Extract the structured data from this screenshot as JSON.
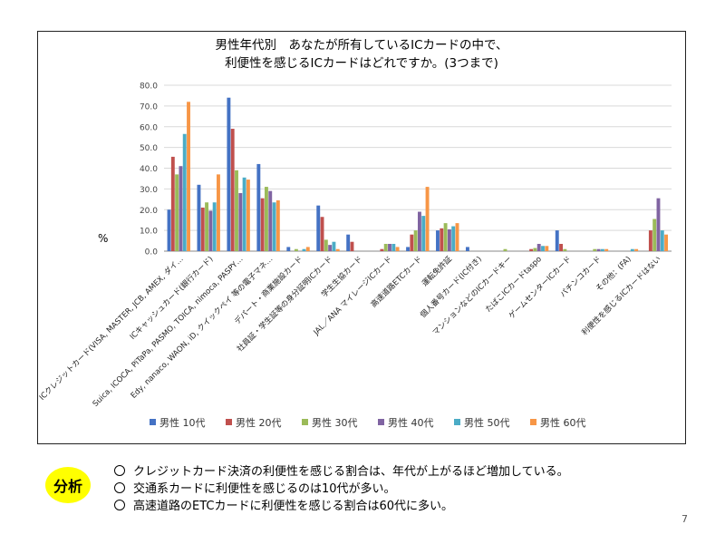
{
  "chart_data": {
    "type": "bar",
    "title": "男性年代別　あなたが所有しているICカードの中で、",
    "subtitle": "利便性を感じるICカードはどれですか。(3つまで)",
    "ylabel": "%",
    "ylim": [
      0,
      80
    ],
    "yticks": [
      "0.0",
      "10.0",
      "20.0",
      "30.0",
      "40.0",
      "50.0",
      "60.0",
      "70.0",
      "80.0"
    ],
    "grid": true,
    "legend_position": "bottom",
    "categories": [
      "ICクレジットカード(VISA, MASTER, JCB, AMEX, ダイ…",
      "ICキャッシュカード(銀行カード)",
      "Suica, ICOCA, PiTaPa, PASMO, TOICA, nimoca, PASPY…",
      "Edy, nanaco, WAON, iD, クイックペイ 等の電子マネ…",
      "デパート・商業施設カード",
      "社員証・学生証等の身分証明ICカード",
      "学生生協カード",
      "JAL／ANA マイレージICカード",
      "高速道路ETCカード",
      "運転免許証",
      "個人番号カード(IC付き)",
      "マンションなどのICカードキー",
      "たばこICカードtaspo",
      "ゲームセンターICカード",
      "パチンコカード",
      "その他：(FA)",
      "利便性を感じるICカードはない"
    ],
    "series": [
      {
        "name": "男性 10代",
        "color": "#4472C4",
        "values": [
          20,
          32,
          74,
          42,
          2,
          22,
          8,
          0,
          2,
          10,
          2,
          0,
          0,
          10,
          0,
          0,
          0
        ]
      },
      {
        "name": "男性 20代",
        "color": "#C0504D",
        "values": [
          45.5,
          21,
          59,
          25.5,
          0,
          16.5,
          4.5,
          1,
          8,
          11,
          0,
          0,
          1,
          3.5,
          0,
          0,
          10
        ]
      },
      {
        "name": "男性 30代",
        "color": "#9BBB59",
        "values": [
          37,
          23.5,
          39,
          31,
          1,
          5.5,
          0,
          3.5,
          10,
          13.5,
          0,
          1,
          1.5,
          1,
          1,
          0,
          15.5
        ]
      },
      {
        "name": "男性 40代",
        "color": "#8064A2",
        "values": [
          41,
          19.5,
          28,
          29,
          0,
          3,
          0,
          3.5,
          19,
          10.5,
          0,
          0,
          3.5,
          0,
          1,
          0,
          25.5
        ]
      },
      {
        "name": "男性 50代",
        "color": "#4BACC6",
        "values": [
          56.5,
          23.5,
          35.5,
          23.5,
          1,
          4.5,
          0,
          3.5,
          17,
          12,
          0,
          0,
          2.5,
          0,
          1,
          1,
          10
        ]
      },
      {
        "name": "男性 60代",
        "color": "#F79646",
        "values": [
          72,
          37,
          34.5,
          24.5,
          2,
          1,
          0,
          2,
          31,
          13.5,
          0,
          0,
          2.5,
          0,
          1,
          1,
          8
        ]
      }
    ]
  },
  "analysis": {
    "badge": "分析",
    "lines": [
      "クレジットカード決済の利便性を感じる割合は、年代が上がるほど増加している。",
      "交通系カードに利便性を感じるのは10代が多い。",
      "高速道路のETCカードに利便性を感じる割合は60代に多い。"
    ]
  },
  "page_number": "7"
}
